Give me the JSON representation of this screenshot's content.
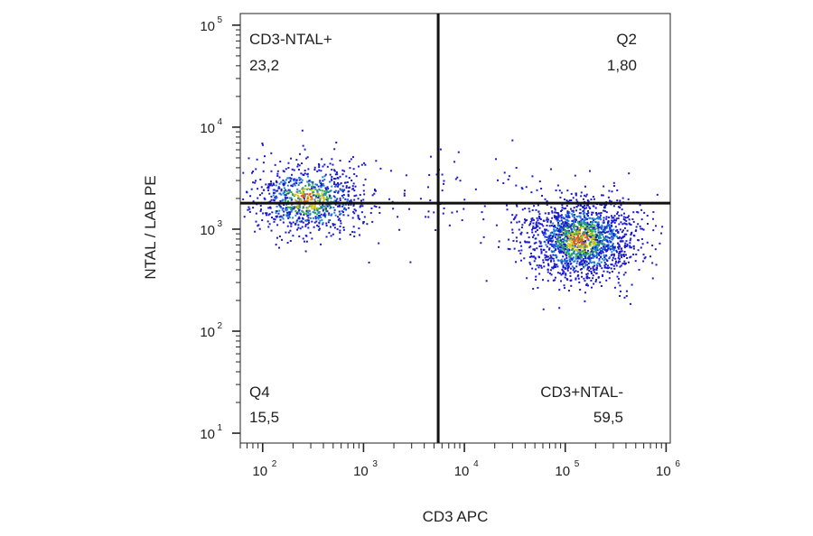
{
  "chart_data": {
    "type": "scatter",
    "xlabel": "CD3 APC",
    "ylabel": "NTAL / LAB PE",
    "x_scale": "log",
    "y_scale": "log",
    "xlim": [
      60,
      1100000
    ],
    "ylim": [
      8,
      130000
    ],
    "x_ticks": [
      {
        "base": "10",
        "exp": "2",
        "value": 100
      },
      {
        "base": "10",
        "exp": "3",
        "value": 1000
      },
      {
        "base": "10",
        "exp": "4",
        "value": 10000
      },
      {
        "base": "10",
        "exp": "5",
        "value": 100000
      },
      {
        "base": "10",
        "exp": "6",
        "value": 1000000
      }
    ],
    "y_ticks": [
      {
        "base": "10",
        "exp": "1",
        "value": 10
      },
      {
        "base": "10",
        "exp": "2",
        "value": 100
      },
      {
        "base": "10",
        "exp": "3",
        "value": 1000
      },
      {
        "base": "10",
        "exp": "4",
        "value": 10000
      },
      {
        "base": "10",
        "exp": "5",
        "value": 100000
      }
    ],
    "gates": {
      "x": 5500,
      "y": 1800
    },
    "quadrants": [
      {
        "name": "CD3-NTAL+",
        "value": "23,2",
        "position": "top-left"
      },
      {
        "name": "Q2",
        "value": "1,80",
        "position": "top-right"
      },
      {
        "name": "Q4",
        "value": "15,5",
        "position": "bottom-left"
      },
      {
        "name": "CD3+NTAL-",
        "value": "59,5",
        "position": "bottom-right"
      }
    ],
    "populations": [
      {
        "name": "",
        "center_x": 280,
        "center_y": 2000,
        "count": 900
      },
      {
        "name": "",
        "center_x": 140000,
        "center_y": 800,
        "count": 1800
      }
    ],
    "density_colors": [
      "#1a1acc",
      "#1f7fd6",
      "#2aa84a",
      "#d4c21a",
      "#e0561c"
    ],
    "grid": false
  }
}
